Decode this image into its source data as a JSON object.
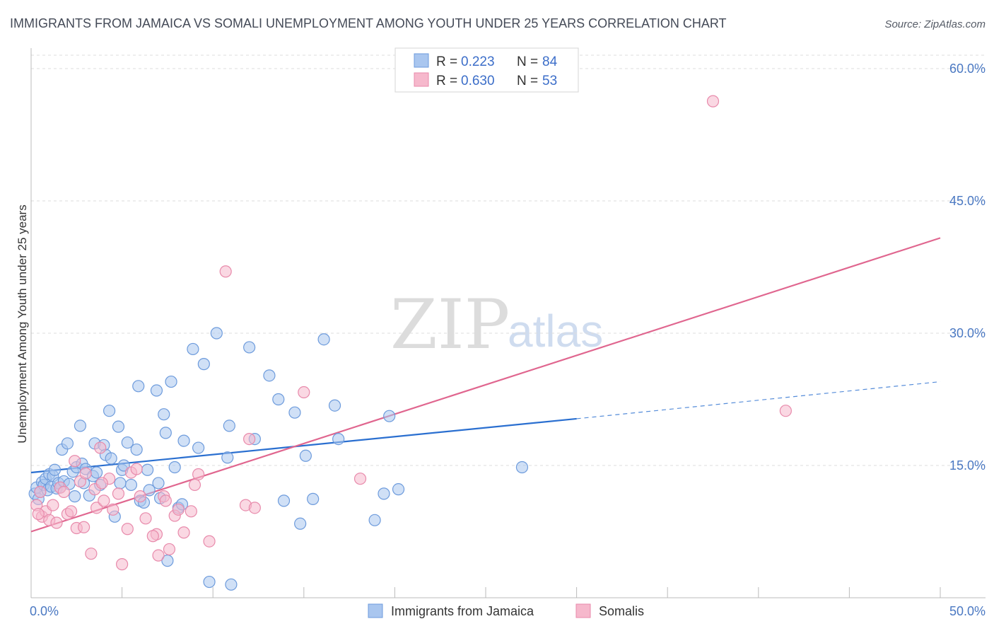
{
  "chart_data": {
    "type": "scatter",
    "title": "IMMIGRANTS FROM JAMAICA VS SOMALI UNEMPLOYMENT AMONG YOUTH UNDER 25 YEARS CORRELATION CHART",
    "source": "Source: ZipAtlas.com",
    "xlabel": "",
    "ylabel": "Unemployment Among Youth under 25 years",
    "xlim": [
      0,
      50
    ],
    "ylim": [
      0,
      60
    ],
    "x_tick_labels": [
      "0.0%",
      "50.0%"
    ],
    "y_ticks": [
      15,
      30,
      45,
      60
    ],
    "y_tick_labels": [
      "15.0%",
      "30.0%",
      "45.0%",
      "60.0%"
    ],
    "watermark": {
      "zip": "ZIP",
      "atlas": "atlas"
    },
    "colors": {
      "jamaica_fill": "#a9c6ef",
      "jamaica_stroke": "#6d9bdc",
      "jamaica_line": "#2a6fd0",
      "somali_fill": "#f6b8cc",
      "somali_stroke": "#e88aab",
      "somali_line": "#e0668f",
      "grid": "#dddddd",
      "axis": "#bbbbbb"
    },
    "legend": {
      "jamaica": {
        "r_label": "R =",
        "r_value": "0.223",
        "n_label": "N =",
        "n_value": "84"
      },
      "somali": {
        "r_label": "R =",
        "r_value": "0.630",
        "n_label": "N =",
        "n_value": "53"
      }
    },
    "series": [
      {
        "name": "Immigrants from Jamaica",
        "color": "#a9c6ef",
        "trend": {
          "x0": 0,
          "y0": 14.2,
          "x1": 30,
          "y1": 20.3,
          "dash_x1": 50,
          "dash_y1": 24.5
        },
        "points": [
          [
            0.2,
            11.8
          ],
          [
            0.3,
            12.5
          ],
          [
            0.4,
            11.2
          ],
          [
            0.5,
            12.0
          ],
          [
            0.6,
            13.1
          ],
          [
            0.7,
            12.8
          ],
          [
            0.8,
            13.5
          ],
          [
            0.9,
            12.2
          ],
          [
            1.0,
            14.0
          ],
          [
            1.1,
            12.6
          ],
          [
            1.2,
            13.8
          ],
          [
            1.3,
            14.5
          ],
          [
            1.4,
            12.4
          ],
          [
            1.5,
            13.0
          ],
          [
            1.6,
            12.5
          ],
          [
            1.7,
            16.8
          ],
          [
            1.8,
            13.2
          ],
          [
            2.0,
            17.5
          ],
          [
            2.1,
            12.9
          ],
          [
            2.3,
            14.3
          ],
          [
            2.5,
            14.8
          ],
          [
            2.7,
            19.5
          ],
          [
            2.8,
            15.2
          ],
          [
            2.9,
            13.0
          ],
          [
            3.0,
            14.6
          ],
          [
            3.2,
            11.6
          ],
          [
            3.4,
            13.8
          ],
          [
            3.5,
            17.5
          ],
          [
            3.6,
            14.2
          ],
          [
            3.8,
            12.8
          ],
          [
            4.0,
            17.3
          ],
          [
            4.1,
            16.2
          ],
          [
            4.3,
            21.2
          ],
          [
            4.4,
            15.8
          ],
          [
            4.6,
            9.2
          ],
          [
            4.8,
            19.4
          ],
          [
            5.0,
            14.5
          ],
          [
            5.1,
            15.0
          ],
          [
            5.3,
            17.6
          ],
          [
            5.5,
            12.8
          ],
          [
            5.8,
            16.8
          ],
          [
            5.9,
            24.0
          ],
          [
            6.0,
            11.0
          ],
          [
            6.2,
            10.8
          ],
          [
            6.4,
            14.5
          ],
          [
            6.5,
            12.2
          ],
          [
            6.9,
            23.5
          ],
          [
            7.0,
            13.0
          ],
          [
            7.1,
            11.3
          ],
          [
            7.3,
            20.8
          ],
          [
            7.4,
            18.7
          ],
          [
            7.7,
            24.5
          ],
          [
            7.9,
            14.8
          ],
          [
            8.1,
            10.2
          ],
          [
            8.3,
            10.6
          ],
          [
            8.4,
            17.8
          ],
          [
            8.9,
            28.2
          ],
          [
            9.2,
            17.0
          ],
          [
            9.5,
            26.5
          ],
          [
            10.2,
            30.0
          ],
          [
            10.8,
            15.9
          ],
          [
            10.9,
            19.5
          ],
          [
            11.0,
            1.5
          ],
          [
            12.0,
            28.4
          ],
          [
            12.3,
            18.0
          ],
          [
            13.1,
            25.2
          ],
          [
            13.6,
            22.5
          ],
          [
            13.9,
            11.0
          ],
          [
            14.5,
            21.0
          ],
          [
            14.8,
            8.4
          ],
          [
            15.1,
            16.1
          ],
          [
            15.5,
            11.2
          ],
          [
            16.1,
            29.3
          ],
          [
            16.7,
            21.8
          ],
          [
            16.9,
            18.0
          ],
          [
            18.9,
            8.8
          ],
          [
            19.4,
            11.8
          ],
          [
            19.7,
            20.6
          ],
          [
            20.2,
            12.3
          ],
          [
            27.0,
            14.8
          ],
          [
            7.5,
            4.2
          ],
          [
            9.8,
            1.8
          ],
          [
            4.9,
            13.0
          ],
          [
            2.4,
            11.5
          ]
        ]
      },
      {
        "name": "Somalis",
        "color": "#f6b8cc",
        "trend": {
          "x0": 0,
          "y0": 7.5,
          "x1": 50,
          "y1": 40.8
        },
        "points": [
          [
            0.3,
            10.5
          ],
          [
            0.5,
            12.0
          ],
          [
            0.6,
            9.2
          ],
          [
            0.8,
            9.8
          ],
          [
            1.0,
            8.8
          ],
          [
            1.2,
            10.5
          ],
          [
            1.4,
            8.5
          ],
          [
            1.6,
            12.5
          ],
          [
            1.8,
            12.0
          ],
          [
            2.0,
            9.5
          ],
          [
            2.2,
            9.8
          ],
          [
            2.4,
            15.5
          ],
          [
            2.5,
            7.9
          ],
          [
            2.7,
            13.2
          ],
          [
            2.9,
            8.0
          ],
          [
            3.0,
            14.1
          ],
          [
            3.3,
            5.0
          ],
          [
            3.5,
            12.3
          ],
          [
            3.6,
            10.2
          ],
          [
            3.8,
            17.0
          ],
          [
            4.0,
            11.0
          ],
          [
            4.3,
            13.5
          ],
          [
            4.5,
            10.0
          ],
          [
            4.8,
            11.8
          ],
          [
            5.0,
            3.8
          ],
          [
            5.3,
            7.8
          ],
          [
            5.5,
            14.2
          ],
          [
            5.8,
            14.6
          ],
          [
            6.0,
            11.5
          ],
          [
            6.3,
            9.0
          ],
          [
            6.9,
            7.2
          ],
          [
            7.0,
            4.8
          ],
          [
            7.3,
            11.5
          ],
          [
            7.4,
            11.0
          ],
          [
            7.6,
            5.5
          ],
          [
            7.9,
            9.3
          ],
          [
            8.1,
            10.0
          ],
          [
            8.4,
            7.4
          ],
          [
            8.8,
            9.8
          ],
          [
            9.0,
            12.8
          ],
          [
            9.2,
            14.0
          ],
          [
            9.8,
            6.4
          ],
          [
            10.7,
            37.0
          ],
          [
            11.8,
            10.5
          ],
          [
            12.0,
            18.0
          ],
          [
            12.3,
            10.2
          ],
          [
            15.0,
            23.3
          ],
          [
            18.1,
            13.5
          ],
          [
            37.5,
            56.3
          ],
          [
            41.5,
            21.2
          ],
          [
            0.4,
            9.5
          ],
          [
            6.7,
            7.0
          ],
          [
            3.9,
            13.0
          ]
        ]
      }
    ],
    "bottom_legend": [
      "Immigrants from Jamaica",
      "Somalis"
    ]
  }
}
